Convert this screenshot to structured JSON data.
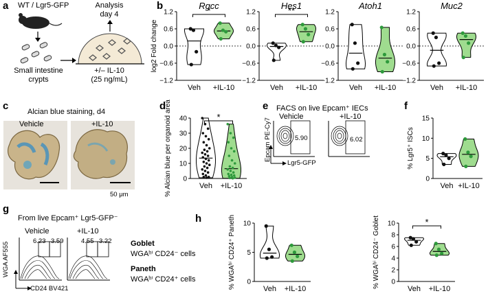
{
  "panel_labels": {
    "a": "a",
    "b": "b",
    "c": "c",
    "d": "d",
    "e": "e",
    "f": "f",
    "g": "g",
    "h": "h"
  },
  "panel_a": {
    "mouse_label": "WT / Lgr5-GFP",
    "analysis_label_1": "Analysis",
    "analysis_label_2": "day 4",
    "crypts_label_1": "Small intestine",
    "crypts_label_2": "crypts",
    "treatment_label_1": "+/– IL-10",
    "treatment_label_2": "(25 ng/mL)"
  },
  "panel_c": {
    "title": "Alcian blue staining, d4",
    "vehicle_label": "Vehicle",
    "il10_label": "+IL-10",
    "scale_label": "50 μm"
  },
  "panel_e": {
    "title": "FACS on live Epcam⁺ IECs",
    "vehicle_label": "Vehicle",
    "il10_label": "+IL-10",
    "y_label": "Epcam PE-Cy7",
    "x_label": "Lgr5-GFP",
    "vehicle_pct": "5.90",
    "il10_pct": "6.02"
  },
  "panel_g": {
    "title": "From live Epcam⁺ Lgr5-GFP⁻",
    "vehicle_label": "Vehicle",
    "il10_label": "+IL-10",
    "y_label": "WGA AF555",
    "x_label": "CD24 BV421",
    "vehicle_left_pct": "6.23",
    "vehicle_right_pct": "3.59",
    "il10_left_pct": "4.55",
    "il10_right_pct": "3.22",
    "goblet_title": "Goblet",
    "goblet_desc": "WGAʰⁱ CD24⁻ cells",
    "paneth_title": "Paneth",
    "paneth_desc": "WGAʰⁱ CD24⁺ cells"
  },
  "colors": {
    "veh": "#ffffff",
    "il10": "#9fdc8f",
    "il10_dot": "#2e9a3c",
    "alcian": "#4a9fcc"
  },
  "chart_data": [
    {
      "id": "rgcc",
      "type": "violin",
      "title": "Rgcc",
      "ylabel": "log2 Fold change",
      "ylim": [
        -1.2,
        1.2
      ],
      "yticks": [
        "−1.2",
        "−0.6",
        "0.0",
        "0.6",
        "1.2"
      ],
      "categories": [
        "Veh",
        "+IL-10"
      ],
      "sig": "*",
      "series": [
        {
          "name": "Veh",
          "values": [
            0.6,
            0.55,
            -0.2,
            -0.65
          ]
        },
        {
          "name": "+IL-10",
          "values": [
            0.8,
            0.55,
            0.5,
            0.25
          ]
        }
      ]
    },
    {
      "id": "hes1",
      "type": "violin",
      "title": "Hes1",
      "ylabel": "",
      "ylim": [
        -1.2,
        1.2
      ],
      "yticks": [
        "−1.2",
        "−0.6",
        "0.0",
        "0.6",
        "1.2"
      ],
      "categories": [
        "Veh",
        "+IL-10"
      ],
      "sig": "**",
      "series": [
        {
          "name": "Veh",
          "values": [
            0.1,
            0.02,
            -0.05,
            -0.5
          ]
        },
        {
          "name": "+IL-10",
          "values": [
            0.75,
            0.6,
            0.4,
            0.15
          ]
        }
      ]
    },
    {
      "id": "atoh1",
      "type": "violin",
      "title": "Atoh1",
      "ylabel": "",
      "ylim": [
        -1.2,
        1.2
      ],
      "yticks": [
        "−1.2",
        "−0.6",
        "0.0",
        "0.6",
        "1.2"
      ],
      "categories": [
        "Veh",
        "+IL-10"
      ],
      "sig": "",
      "series": [
        {
          "name": "Veh",
          "values": [
            0.75,
            0.1,
            -0.6,
            -0.8
          ]
        },
        {
          "name": "+IL-10",
          "values": [
            0.65,
            -0.3,
            -0.55,
            -0.9
          ]
        }
      ]
    },
    {
      "id": "muc2",
      "type": "violin",
      "title": "Muc2",
      "ylabel": "",
      "ylim": [
        -1.2,
        1.2
      ],
      "yticks": [
        "−1.2",
        "−0.6",
        "0.0",
        "0.6",
        "1.2"
      ],
      "categories": [
        "Veh",
        "+IL-10"
      ],
      "sig": "",
      "series": [
        {
          "name": "Veh",
          "values": [
            0.45,
            0.3,
            -0.6,
            -0.7
          ]
        },
        {
          "name": "+IL-10",
          "values": [
            0.45,
            0.35,
            0.1,
            -0.4
          ]
        }
      ]
    },
    {
      "id": "alcian",
      "type": "violin",
      "title": "",
      "ylabel": "% Alcian blue per organoid area",
      "ylim": [
        0,
        40
      ],
      "yticks": [
        "0",
        "10",
        "20",
        "30",
        "40"
      ],
      "categories": [
        "Veh",
        "+IL-10"
      ],
      "sig": "*",
      "series": [
        {
          "name": "Veh",
          "values": [
            40,
            36,
            33,
            30,
            28,
            26,
            24,
            22,
            20,
            19,
            18,
            17,
            16,
            15,
            14,
            13,
            12,
            11,
            10,
            9,
            8,
            7,
            6,
            5,
            4,
            3,
            2,
            1,
            1,
            0.5
          ]
        },
        {
          "name": "+IL-10",
          "values": [
            36,
            30,
            27,
            24,
            20,
            18,
            15,
            12,
            10,
            8,
            7,
            6,
            5,
            4,
            3,
            2.5,
            2,
            1.5,
            1,
            0.5,
            0.3,
            0.1
          ]
        }
      ]
    },
    {
      "id": "lgr5",
      "type": "violin",
      "title": "",
      "ylabel": "% Lgr5⁺ ISCs",
      "ylim": [
        0,
        15
      ],
      "yticks": [
        "0",
        "5",
        "10",
        "15"
      ],
      "categories": [
        "Veh",
        "+IL-10"
      ],
      "sig": "",
      "series": [
        {
          "name": "Veh",
          "values": [
            6.2,
            5.8,
            5.0,
            3.5
          ]
        },
        {
          "name": "+IL-10",
          "values": [
            9.8,
            6.5,
            5.5,
            3.0
          ]
        }
      ]
    },
    {
      "id": "paneth",
      "type": "violin",
      "title": "",
      "ylabel": "% WGAʰⁱ CD24⁺ Paneth",
      "ylim": [
        0,
        10
      ],
      "yticks": [
        "0",
        "5",
        "10"
      ],
      "categories": [
        "Veh",
        "+IL-10"
      ],
      "sig": "",
      "series": [
        {
          "name": "Veh",
          "values": [
            9.5,
            5.5,
            4.2,
            4.0
          ]
        },
        {
          "name": "+IL-10",
          "values": [
            6.2,
            5.0,
            4.3,
            3.5
          ]
        }
      ]
    },
    {
      "id": "goblet",
      "type": "violin",
      "title": "",
      "ylabel": "% WGAʰⁱ CD24⁻ Goblet",
      "ylim": [
        0,
        10
      ],
      "yticks": [
        "0",
        "2",
        "4",
        "6",
        "8",
        "10"
      ],
      "categories": [
        "Veh",
        "+IL-10"
      ],
      "sig": "*",
      "series": [
        {
          "name": "Veh",
          "values": [
            7.5,
            7.3,
            6.8,
            6.2
          ]
        },
        {
          "name": "+IL-10",
          "values": [
            6.5,
            5.5,
            4.8,
            4.5
          ]
        }
      ]
    }
  ]
}
